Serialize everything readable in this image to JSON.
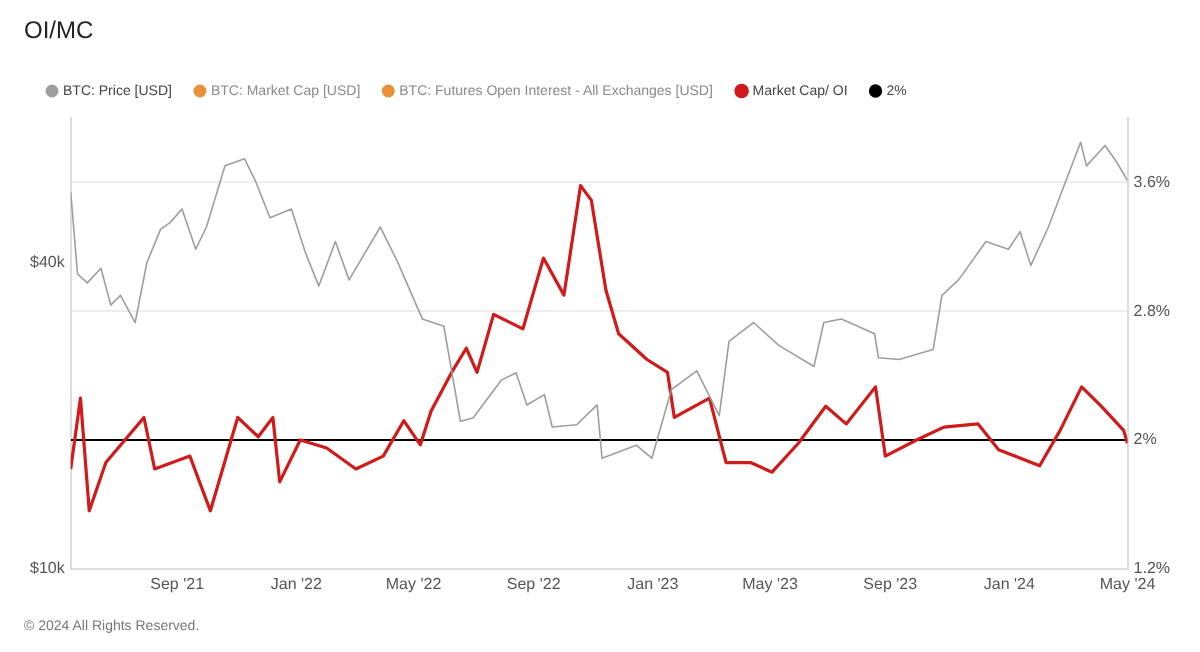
{
  "chart_data": {
    "type": "line",
    "title": "OI/MC",
    "annotations": [
      "© 2024 All Rights Reserved."
    ],
    "xlim": [
      "2021-05-15",
      "2024-05-01"
    ],
    "xticks": [
      {
        "value": "2021-09-01",
        "label": "Sep '21"
      },
      {
        "value": "2022-01-01",
        "label": "Jan '22"
      },
      {
        "value": "2022-05-01",
        "label": "May '22"
      },
      {
        "value": "2022-09-01",
        "label": "Sep '22"
      },
      {
        "value": "2023-01-01",
        "label": "Jan '23"
      },
      {
        "value": "2023-05-01",
        "label": "May '23"
      },
      {
        "value": "2023-09-01",
        "label": "Sep '23"
      },
      {
        "value": "2024-01-01",
        "label": "Jan '24"
      },
      {
        "value": "2024-05-01",
        "label": "May '24"
      }
    ],
    "log": "y",
    "ylim": [
      10000,
      77000
    ],
    "yticks": [
      {
        "value": 10000,
        "label": "$10k"
      },
      {
        "value": 40000,
        "label": "$40k"
      }
    ],
    "y2lim": [
      1.2,
      4.0
    ],
    "y2ticks": [
      {
        "value": 1.2,
        "label": "1.2%"
      },
      {
        "value": 2,
        "label": "2%"
      },
      {
        "value": 2.8,
        "label": "2.8%"
      },
      {
        "value": 3.6,
        "label": "3.6%"
      }
    ],
    "grid": "y",
    "legend": "top left",
    "marker": "none",
    "ref_lines": [
      {
        "axis": "y2",
        "value": 2,
        "label": "2%",
        "color": "#000000"
      }
    ],
    "series": [
      {
        "name": "BTC: Price [USD]",
        "color": "#9e9e9e",
        "x": [
          "2021-05-15",
          "2021-05-22",
          "2021-06-01",
          "2021-06-15",
          "2021-06-25",
          "2021-07-05",
          "2021-07-20",
          "2021-08-01",
          "2021-08-15",
          "2021-08-25",
          "2021-09-06",
          "2021-09-20",
          "2021-10-01",
          "2021-10-20",
          "2021-11-09",
          "2021-11-20",
          "2021-12-05",
          "2021-12-27",
          "2022-01-10",
          "2022-01-24",
          "2022-02-10",
          "2022-02-24",
          "2022-03-28",
          "2022-04-15",
          "2022-05-10",
          "2022-06-01",
          "2022-06-18",
          "2022-07-01",
          "2022-07-30",
          "2022-08-14",
          "2022-08-25",
          "2022-09-12",
          "2022-09-20",
          "2022-10-15",
          "2022-11-05",
          "2022-11-10",
          "2022-12-15",
          "2022-12-31",
          "2023-01-20",
          "2023-02-15",
          "2023-03-10",
          "2023-03-20",
          "2023-04-14",
          "2023-05-10",
          "2023-06-15",
          "2023-06-25",
          "2023-07-13",
          "2023-08-16",
          "2023-08-20",
          "2023-09-10",
          "2023-10-15",
          "2023-10-24",
          "2023-11-10",
          "2023-12-08",
          "2023-12-31",
          "2024-01-12",
          "2024-01-23",
          "2024-02-10",
          "2024-02-28",
          "2024-03-14",
          "2024-03-20",
          "2024-04-08",
          "2024-04-20",
          "2024-05-01"
        ],
        "values": [
          55000,
          38000,
          36500,
          39000,
          33000,
          34500,
          30500,
          40000,
          46500,
          48000,
          51000,
          42500,
          47000,
          62000,
          64000,
          58000,
          49000,
          51000,
          42000,
          36000,
          44000,
          37000,
          47000,
          40000,
          31000,
          30000,
          19500,
          19800,
          23500,
          24300,
          21000,
          22000,
          19000,
          19200,
          21000,
          16500,
          17500,
          16500,
          22500,
          24500,
          20000,
          28000,
          30500,
          27500,
          25000,
          30500,
          31000,
          29000,
          26000,
          25800,
          27000,
          34500,
          37000,
          44000,
          42500,
          46000,
          39500,
          47000,
          58000,
          69000,
          62000,
          68000,
          63000,
          58000
        ]
      },
      {
        "name": "BTC: Market Cap [USD]",
        "color": "#e8913a"
      },
      {
        "name": "BTC: Futures Open Interest - All Exchanges [USD]",
        "color": "#e8913a"
      },
      {
        "name": "Market Cap/ OI",
        "color": "#d11a1a",
        "axis": "y2",
        "x": [
          "2021-05-15",
          "2021-05-25",
          "2021-06-03",
          "2021-06-20",
          "2021-07-29",
          "2021-08-09",
          "2021-09-14",
          "2021-10-05",
          "2021-11-02",
          "2021-11-23",
          "2021-12-08",
          "2021-12-15",
          "2022-01-05",
          "2022-02-01",
          "2022-03-03",
          "2022-03-31",
          "2022-04-21",
          "2022-05-08",
          "2022-05-19",
          "2022-06-09",
          "2022-06-24",
          "2022-07-05",
          "2022-07-22",
          "2022-08-21",
          "2022-09-11",
          "2022-10-02",
          "2022-10-19",
          "2022-10-30",
          "2022-11-14",
          "2022-11-27",
          "2022-12-26",
          "2023-01-16",
          "2023-01-23",
          "2023-02-28",
          "2023-03-17",
          "2023-04-11",
          "2023-05-03",
          "2023-05-30",
          "2023-06-27",
          "2023-07-18",
          "2023-08-17",
          "2023-08-27",
          "2023-09-28",
          "2023-10-26",
          "2023-11-30",
          "2023-12-21",
          "2024-02-01",
          "2024-02-22",
          "2024-03-15",
          "2024-04-04",
          "2024-04-27",
          "2024-05-01"
        ],
        "values": [
          1.82,
          2.26,
          1.56,
          1.86,
          2.14,
          1.82,
          1.9,
          1.56,
          2.14,
          2.02,
          2.14,
          1.74,
          2.0,
          1.95,
          1.82,
          1.9,
          2.12,
          1.97,
          2.18,
          2.42,
          2.57,
          2.42,
          2.78,
          2.69,
          3.13,
          2.9,
          3.58,
          3.49,
          2.93,
          2.66,
          2.5,
          2.42,
          2.14,
          2.26,
          1.86,
          1.86,
          1.8,
          1.98,
          2.21,
          2.1,
          2.33,
          1.9,
          2.0,
          2.08,
          2.1,
          1.94,
          1.84,
          2.06,
          2.33,
          2.21,
          2.06,
          1.98
        ]
      }
    ]
  }
}
